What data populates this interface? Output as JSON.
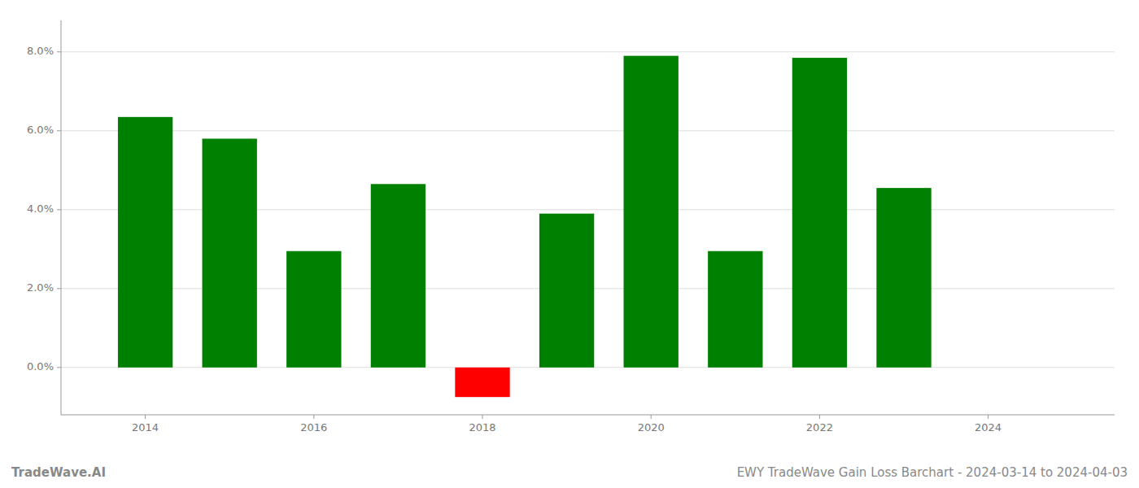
{
  "chart_data": {
    "type": "bar",
    "title": "EWY TradeWave Gain Loss Barchart - 2024-03-14 to 2024-04-03",
    "annotations": [
      "TradeWave.AI"
    ],
    "x": [
      2014,
      2015,
      2016,
      2017,
      2018,
      2019,
      2020,
      2021,
      2022,
      2023
    ],
    "values": [
      0.0635,
      0.058,
      0.0295,
      0.0465,
      -0.0075,
      0.039,
      0.079,
      0.0295,
      0.0785,
      0.0455
    ],
    "colors": [
      "#008000",
      "#008000",
      "#008000",
      "#008000",
      "#ff0000",
      "#008000",
      "#008000",
      "#008000",
      "#008000",
      "#008000"
    ],
    "xlim": [
      2013.0,
      2025.5
    ],
    "xticks": [
      2014,
      2016,
      2018,
      2020,
      2022,
      2024
    ],
    "ylim": [
      -0.012,
      0.088
    ],
    "yticks": [
      {
        "value": 0.0,
        "label": "0.0%"
      },
      {
        "value": 0.02,
        "label": "2.0%"
      },
      {
        "value": 0.04,
        "label": "4.0%"
      },
      {
        "value": 0.06,
        "label": "6.0%"
      },
      {
        "value": 0.08,
        "label": "8.0%"
      }
    ],
    "grid": true
  }
}
